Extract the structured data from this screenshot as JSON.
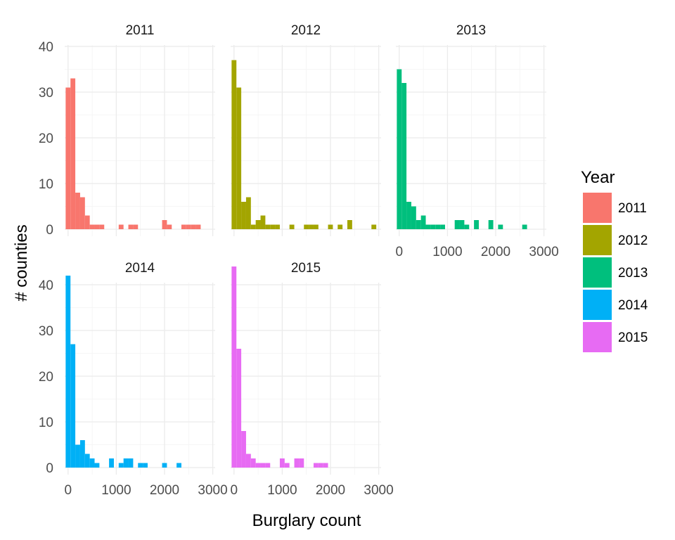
{
  "chart_data": {
    "type": "bar",
    "subtype": "faceted-histogram",
    "xlabel": "Burglary count",
    "ylabel": "# counties",
    "xlim": [
      -70,
      3050
    ],
    "ylim": [
      0,
      45
    ],
    "x_ticks": [
      0,
      1000,
      2000,
      3000
    ],
    "y_ticks": [
      0,
      10,
      20,
      30,
      40
    ],
    "bin_width": 100,
    "grid": true,
    "legend": {
      "title": "Year",
      "placement": "right",
      "entries": [
        "2011",
        "2012",
        "2013",
        "2014",
        "2015"
      ]
    },
    "series": [
      {
        "name": "2011",
        "color": "#F8766D",
        "bins": [
          {
            "x": 0,
            "y": 31
          },
          {
            "x": 100,
            "y": 33
          },
          {
            "x": 200,
            "y": 8
          },
          {
            "x": 300,
            "y": 7
          },
          {
            "x": 400,
            "y": 3
          },
          {
            "x": 500,
            "y": 1
          },
          {
            "x": 600,
            "y": 1
          },
          {
            "x": 700,
            "y": 1
          },
          {
            "x": 1100,
            "y": 1
          },
          {
            "x": 1300,
            "y": 1
          },
          {
            "x": 1400,
            "y": 1
          },
          {
            "x": 2000,
            "y": 2
          },
          {
            "x": 2100,
            "y": 1
          },
          {
            "x": 2400,
            "y": 1
          },
          {
            "x": 2500,
            "y": 1
          },
          {
            "x": 2600,
            "y": 1
          },
          {
            "x": 2700,
            "y": 1
          }
        ]
      },
      {
        "name": "2012",
        "color": "#A3A500",
        "bins": [
          {
            "x": 0,
            "y": 37
          },
          {
            "x": 100,
            "y": 31
          },
          {
            "x": 200,
            "y": 6
          },
          {
            "x": 300,
            "y": 7
          },
          {
            "x": 400,
            "y": 1
          },
          {
            "x": 500,
            "y": 2
          },
          {
            "x": 600,
            "y": 3
          },
          {
            "x": 700,
            "y": 1
          },
          {
            "x": 800,
            "y": 1
          },
          {
            "x": 900,
            "y": 1
          },
          {
            "x": 1200,
            "y": 1
          },
          {
            "x": 1500,
            "y": 1
          },
          {
            "x": 1600,
            "y": 1
          },
          {
            "x": 1700,
            "y": 1
          },
          {
            "x": 2000,
            "y": 1
          },
          {
            "x": 2200,
            "y": 1
          },
          {
            "x": 2400,
            "y": 2
          },
          {
            "x": 2900,
            "y": 1
          }
        ]
      },
      {
        "name": "2013",
        "color": "#00BF7D",
        "bins": [
          {
            "x": 0,
            "y": 35
          },
          {
            "x": 100,
            "y": 32
          },
          {
            "x": 200,
            "y": 6
          },
          {
            "x": 300,
            "y": 5
          },
          {
            "x": 400,
            "y": 2
          },
          {
            "x": 500,
            "y": 3
          },
          {
            "x": 600,
            "y": 1
          },
          {
            "x": 700,
            "y": 1
          },
          {
            "x": 800,
            "y": 1
          },
          {
            "x": 900,
            "y": 1
          },
          {
            "x": 1200,
            "y": 2
          },
          {
            "x": 1300,
            "y": 2
          },
          {
            "x": 1400,
            "y": 1
          },
          {
            "x": 1600,
            "y": 2
          },
          {
            "x": 1900,
            "y": 2
          },
          {
            "x": 2100,
            "y": 1
          },
          {
            "x": 2600,
            "y": 1
          }
        ]
      },
      {
        "name": "2014",
        "color": "#00B0F6",
        "bins": [
          {
            "x": 0,
            "y": 42
          },
          {
            "x": 100,
            "y": 27
          },
          {
            "x": 200,
            "y": 5
          },
          {
            "x": 300,
            "y": 6
          },
          {
            "x": 400,
            "y": 3
          },
          {
            "x": 500,
            "y": 2
          },
          {
            "x": 600,
            "y": 1
          },
          {
            "x": 900,
            "y": 2
          },
          {
            "x": 1100,
            "y": 1
          },
          {
            "x": 1200,
            "y": 2
          },
          {
            "x": 1300,
            "y": 2
          },
          {
            "x": 1500,
            "y": 1
          },
          {
            "x": 1600,
            "y": 1
          },
          {
            "x": 2000,
            "y": 1
          },
          {
            "x": 2300,
            "y": 1
          }
        ]
      },
      {
        "name": "2015",
        "color": "#E76BF3",
        "bins": [
          {
            "x": 0,
            "y": 44
          },
          {
            "x": 100,
            "y": 26
          },
          {
            "x": 200,
            "y": 8
          },
          {
            "x": 300,
            "y": 3
          },
          {
            "x": 400,
            "y": 2
          },
          {
            "x": 500,
            "y": 1
          },
          {
            "x": 600,
            "y": 1
          },
          {
            "x": 700,
            "y": 1
          },
          {
            "x": 1000,
            "y": 2
          },
          {
            "x": 1100,
            "y": 1
          },
          {
            "x": 1300,
            "y": 2
          },
          {
            "x": 1400,
            "y": 2
          },
          {
            "x": 1700,
            "y": 1
          },
          {
            "x": 1800,
            "y": 1
          },
          {
            "x": 1900,
            "y": 1
          }
        ]
      }
    ]
  }
}
